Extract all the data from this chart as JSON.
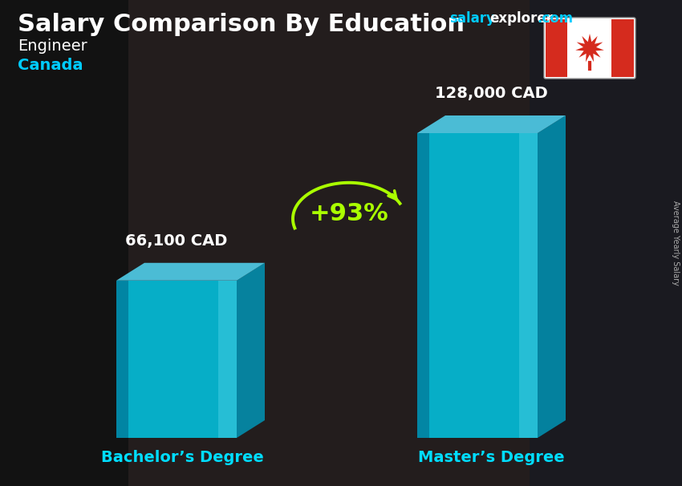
{
  "title": "Salary Comparison By Education",
  "subtitle_job": "Engineer",
  "subtitle_country": "Canada",
  "side_label": "Average Yearly Salary",
  "categories": [
    "Bachelor’s Degree",
    "Master’s Degree"
  ],
  "values": [
    66100,
    128000
  ],
  "value_labels": [
    "66,100 CAD",
    "128,000 CAD"
  ],
  "pct_change": "+93%",
  "bar_front_color": "#00cfee",
  "bar_side_color": "#0099bb",
  "bar_top_color": "#55e0ff",
  "bar_left_dark": "#006688",
  "bar_alpha": 0.82,
  "bg_color": "#2a2a2a",
  "title_color": "#ffffff",
  "subtitle_job_color": "#ffffff",
  "subtitle_country_color": "#00ccff",
  "value_label_color": "#ffffff",
  "category_label_color": "#00ddff",
  "pct_color": "#aaff00",
  "watermark_salary_color": "#00ccff",
  "watermark_explorer_color": "#ffffff",
  "watermark_dot_com_color": "#00ccff",
  "arrow_color": "#aaff00",
  "side_label_color": "#aaaaaa",
  "flag_red": "#d52b1e",
  "watermark_fontsize": 12,
  "title_fontsize": 22,
  "subtitle_fontsize": 14,
  "value_fontsize": 14,
  "category_fontsize": 14,
  "pct_fontsize": 22
}
